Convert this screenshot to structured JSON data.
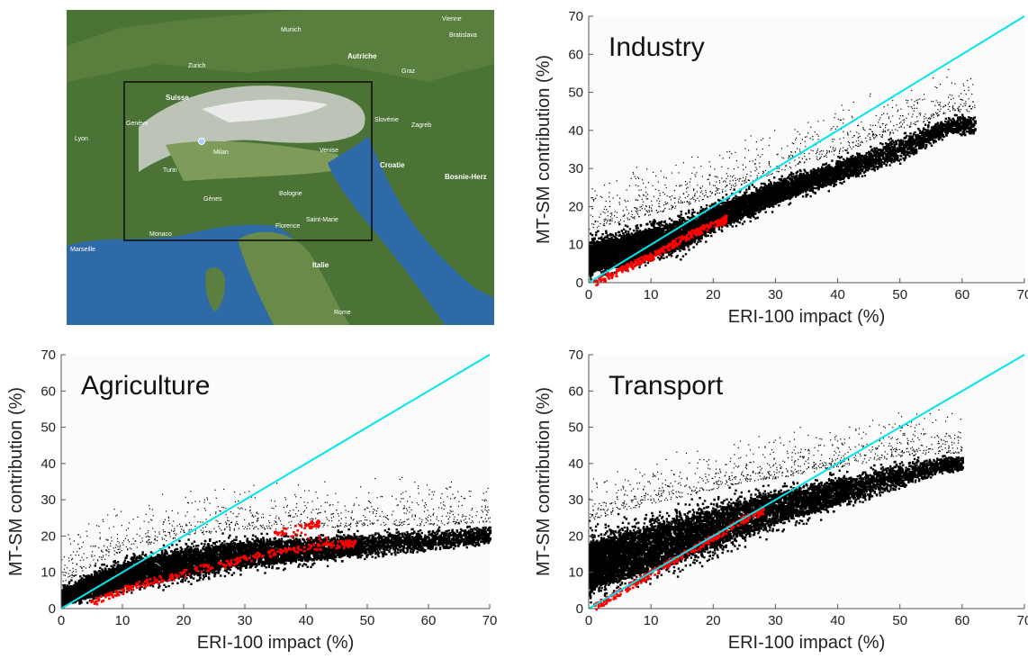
{
  "map": {
    "labels": {
      "munich": "Munich",
      "zurich": "Zurich",
      "vienne": "Vienne",
      "bratislava": "Bratislava",
      "autriche": "Autriche",
      "graz": "Graz",
      "suisse": "Suisse",
      "geneve": "Genève",
      "lyon": "Lyon",
      "slovenie": "Slovénie",
      "zagreb": "Zagreb",
      "milan": "Milan",
      "venise": "Venise",
      "turin": "Turin",
      "croatie": "Croatie",
      "bosnie": "Bosnie-Herz",
      "genes": "Gènes",
      "bologne": "Bologne",
      "saint_marie": "Saint-Marie",
      "monaco": "Monaco",
      "florence": "Florence",
      "marseille": "Marseille",
      "italie": "Italie",
      "rome": "Rome"
    },
    "colors": {
      "land": "#4f7a3a",
      "sea": "#2f6aa8",
      "alps": "#e6e6e4",
      "box": "#111111"
    }
  },
  "chart_data": [
    {
      "type": "scatter",
      "panel": "industry",
      "title": "Industry",
      "xlabel": "ERI-100 impact (%)",
      "ylabel": "MT-SM contribution (%)",
      "xlim": [
        0,
        70
      ],
      "ylim": [
        0,
        70
      ],
      "xticks": [
        0,
        10,
        20,
        30,
        40,
        50,
        60,
        70
      ],
      "yticks": [
        0,
        10,
        20,
        30,
        40,
        50,
        60,
        70
      ],
      "reference_line": {
        "from": [
          0,
          0
        ],
        "to": [
          70,
          70
        ],
        "color": "#00e5ee"
      },
      "black_cloud": {
        "color": "#000000",
        "upper_envelope": [
          [
            0,
            14
          ],
          [
            5,
            16
          ],
          [
            10,
            18
          ],
          [
            15,
            20
          ],
          [
            20,
            23
          ],
          [
            25,
            26
          ],
          [
            30,
            29
          ],
          [
            40,
            34
          ],
          [
            50,
            40
          ],
          [
            58,
            45
          ]
        ],
        "lower_envelope": [
          [
            0,
            0
          ],
          [
            5,
            1
          ],
          [
            10,
            4
          ],
          [
            15,
            6
          ],
          [
            20,
            12
          ],
          [
            25,
            15
          ],
          [
            30,
            19
          ],
          [
            40,
            25
          ],
          [
            50,
            31
          ],
          [
            58,
            38
          ]
        ],
        "extent_x": [
          0,
          62
        ]
      },
      "red_points": {
        "color": "#ff0000",
        "values": [
          [
            1,
            0.5
          ],
          [
            3,
            2
          ],
          [
            5,
            3.5
          ],
          [
            7,
            5
          ],
          [
            9,
            6.5
          ],
          [
            11,
            8
          ],
          [
            13,
            10
          ],
          [
            15,
            12
          ],
          [
            17,
            13.5
          ],
          [
            19,
            15
          ],
          [
            21,
            16
          ],
          [
            22,
            17
          ]
        ]
      }
    },
    {
      "type": "scatter",
      "panel": "agriculture",
      "title": "Agriculture",
      "xlabel": "ERI-100 impact (%)",
      "ylabel": "MT-SM contribution (%)",
      "xlim": [
        0,
        70
      ],
      "ylim": [
        0,
        70
      ],
      "xticks": [
        0,
        10,
        20,
        30,
        40,
        50,
        60,
        70
      ],
      "yticks": [
        0,
        10,
        20,
        30,
        40,
        50,
        60,
        70
      ],
      "reference_line": {
        "from": [
          0,
          0
        ],
        "to": [
          70,
          70
        ],
        "color": "#00e5ee"
      },
      "black_cloud": {
        "color": "#000000",
        "upper_envelope": [
          [
            0,
            7
          ],
          [
            5,
            12
          ],
          [
            10,
            16
          ],
          [
            20,
            20
          ],
          [
            30,
            22
          ],
          [
            40,
            22
          ],
          [
            50,
            23
          ],
          [
            60,
            23
          ],
          [
            70,
            24
          ]
        ],
        "lower_envelope": [
          [
            0,
            0
          ],
          [
            5,
            1
          ],
          [
            10,
            3
          ],
          [
            20,
            6
          ],
          [
            30,
            9
          ],
          [
            40,
            11
          ],
          [
            50,
            13
          ],
          [
            60,
            15
          ],
          [
            70,
            17
          ]
        ],
        "extent_x": [
          0,
          70
        ]
      },
      "red_points": {
        "color": "#ff0000",
        "values": [
          [
            5,
            2
          ],
          [
            8,
            4
          ],
          [
            11,
            6
          ],
          [
            14,
            7.5
          ],
          [
            18,
            9
          ],
          [
            22,
            11
          ],
          [
            26,
            12.5
          ],
          [
            30,
            14
          ],
          [
            34,
            15.5
          ],
          [
            38,
            16.5
          ],
          [
            42,
            17.5
          ],
          [
            46,
            18
          ],
          [
            48,
            18.5
          ],
          [
            35,
            21
          ],
          [
            40,
            23
          ],
          [
            42,
            24
          ]
        ]
      }
    },
    {
      "type": "scatter",
      "panel": "transport",
      "title": "Transport",
      "xlabel": "ERI-100 impact (%)",
      "ylabel": "MT-SM contribution (%)",
      "xlim": [
        0,
        70
      ],
      "ylim": [
        0,
        70
      ],
      "xticks": [
        0,
        10,
        20,
        30,
        40,
        50,
        60,
        70
      ],
      "yticks": [
        0,
        10,
        20,
        30,
        40,
        50,
        60,
        70
      ],
      "reference_line": {
        "from": [
          0,
          0
        ],
        "to": [
          70,
          70
        ],
        "color": "#00e5ee"
      },
      "black_cloud": {
        "color": "#000000",
        "upper_envelope": [
          [
            0,
            24
          ],
          [
            5,
            27
          ],
          [
            10,
            29
          ],
          [
            15,
            31
          ],
          [
            20,
            33
          ],
          [
            25,
            35
          ],
          [
            30,
            36
          ],
          [
            40,
            39
          ],
          [
            50,
            42
          ],
          [
            57,
            43
          ]
        ],
        "lower_envelope": [
          [
            0,
            0
          ],
          [
            5,
            2
          ],
          [
            10,
            5
          ],
          [
            15,
            9
          ],
          [
            20,
            12
          ],
          [
            25,
            16
          ],
          [
            30,
            20
          ],
          [
            40,
            26
          ],
          [
            50,
            32
          ],
          [
            57,
            37
          ]
        ],
        "extent_x": [
          0,
          60
        ]
      },
      "red_points": {
        "color": "#ff0000",
        "values": [
          [
            1,
            1
          ],
          [
            3,
            3
          ],
          [
            5,
            5
          ],
          [
            7,
            7
          ],
          [
            9,
            9
          ],
          [
            11,
            11
          ],
          [
            13,
            13
          ],
          [
            15,
            15
          ],
          [
            17,
            17
          ],
          [
            19,
            19
          ],
          [
            21,
            21
          ],
          [
            23,
            23
          ],
          [
            25,
            25
          ],
          [
            27,
            26.5
          ],
          [
            28,
            27.5
          ]
        ]
      }
    }
  ]
}
